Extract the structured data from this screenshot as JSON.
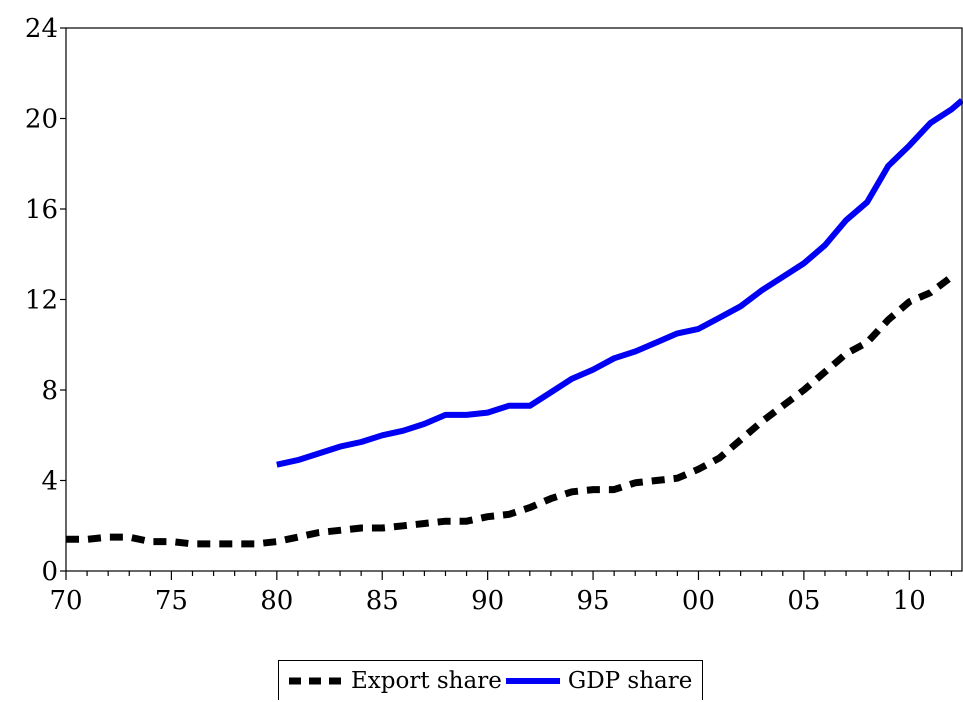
{
  "chart_data": {
    "type": "line",
    "title": "",
    "xlabel": "",
    "ylabel": "",
    "x_tick_labels": [
      "70",
      "75",
      "80",
      "85",
      "90",
      "95",
      "00",
      "05",
      "10"
    ],
    "y_ticks": [
      0,
      4,
      8,
      12,
      16,
      20,
      24
    ],
    "ylim": [
      0,
      24
    ],
    "xlim": [
      1970,
      2012.5
    ],
    "grid": false,
    "legend_position": "bottom-center",
    "series": [
      {
        "name": "Export share",
        "style": "dashed",
        "color": "#000000",
        "x": [
          1970,
          1971,
          1972,
          1973,
          1974,
          1975,
          1976,
          1977,
          1978,
          1979,
          1980,
          1981,
          1982,
          1983,
          1984,
          1985,
          1986,
          1987,
          1988,
          1989,
          1990,
          1991,
          1992,
          1993,
          1994,
          1995,
          1996,
          1997,
          1998,
          1999,
          2000,
          2001,
          2002,
          2003,
          2004,
          2005,
          2006,
          2007,
          2008,
          2009,
          2010,
          2011,
          2012
        ],
        "values": [
          1.4,
          1.4,
          1.5,
          1.5,
          1.3,
          1.3,
          1.2,
          1.2,
          1.2,
          1.2,
          1.3,
          1.5,
          1.7,
          1.8,
          1.9,
          1.9,
          2.0,
          2.1,
          2.2,
          2.2,
          2.4,
          2.5,
          2.8,
          3.2,
          3.5,
          3.6,
          3.6,
          3.9,
          4.0,
          4.1,
          4.5,
          5.0,
          5.8,
          6.6,
          7.3,
          8.0,
          8.8,
          9.6,
          10.1,
          11.1,
          11.9,
          12.3,
          13.0
        ]
      },
      {
        "name": "GDP share",
        "style": "solid",
        "color": "#0000f5",
        "x": [
          1980,
          1981,
          1982,
          1983,
          1984,
          1985,
          1986,
          1987,
          1988,
          1989,
          1990,
          1991,
          1992,
          1993,
          1994,
          1995,
          1996,
          1997,
          1998,
          1999,
          2000,
          2001,
          2002,
          2003,
          2004,
          2005,
          2006,
          2007,
          2008,
          2009,
          2010,
          2011,
          2012,
          2012.5
        ],
        "values": [
          4.7,
          4.9,
          5.2,
          5.5,
          5.7,
          6.0,
          6.2,
          6.5,
          6.9,
          6.9,
          7.0,
          7.3,
          7.3,
          7.9,
          8.5,
          8.9,
          9.4,
          9.7,
          10.1,
          10.5,
          10.7,
          11.2,
          11.7,
          12.4,
          13.0,
          13.6,
          14.4,
          15.5,
          16.3,
          17.9,
          18.8,
          19.8,
          20.4,
          20.8
        ]
      }
    ]
  }
}
